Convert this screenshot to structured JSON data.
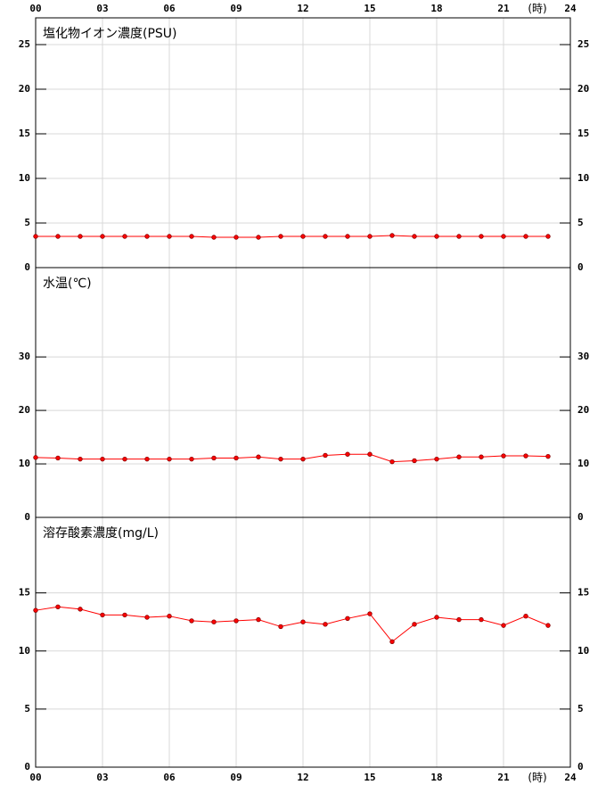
{
  "chart_data": [
    {
      "type": "line",
      "title": "塩化物イオン濃度(PSU)",
      "x_unit": "(時)",
      "x": [
        0,
        1,
        2,
        3,
        4,
        5,
        6,
        7,
        8,
        9,
        10,
        11,
        12,
        13,
        14,
        15,
        16,
        17,
        18,
        19,
        20,
        21,
        22,
        23
      ],
      "values": [
        3.5,
        3.5,
        3.5,
        3.5,
        3.5,
        3.5,
        3.5,
        3.5,
        3.4,
        3.4,
        3.4,
        3.5,
        3.5,
        3.5,
        3.5,
        3.5,
        3.6,
        3.5,
        3.5,
        3.5,
        3.5,
        3.5,
        3.5,
        3.5
      ],
      "color": "#ff0000",
      "xlim": [
        0,
        24
      ],
      "ylim": [
        0,
        28
      ],
      "xticks": [
        {
          "value": 0,
          "label": "00"
        },
        {
          "value": 3,
          "label": "03"
        },
        {
          "value": 6,
          "label": "06"
        },
        {
          "value": 9,
          "label": "09"
        },
        12,
        15,
        18,
        21,
        24
      ],
      "yticks": [
        0,
        5,
        10,
        15,
        20,
        25
      ],
      "grid": true
    },
    {
      "type": "line",
      "title": "水温(℃)",
      "x": [
        0,
        1,
        2,
        3,
        4,
        5,
        6,
        7,
        8,
        9,
        10,
        11,
        12,
        13,
        14,
        15,
        16,
        17,
        18,
        19,
        20,
        21,
        22,
        23
      ],
      "values": [
        11.2,
        11.1,
        10.9,
        10.9,
        10.9,
        10.9,
        10.9,
        10.9,
        11.1,
        11.1,
        11.3,
        10.9,
        10.9,
        11.6,
        11.8,
        11.8,
        10.4,
        10.6,
        10.9,
        11.3,
        11.3,
        11.5,
        11.5,
        11.4
      ],
      "color": "#ff0000",
      "xlim": [
        0,
        24
      ],
      "ylim": [
        0,
        46.7
      ],
      "xticks": [
        {
          "value": 0,
          "label": "00"
        },
        {
          "value": 3,
          "label": "03"
        },
        {
          "value": 6,
          "label": "06"
        },
        {
          "value": 9,
          "label": "09"
        },
        12,
        15,
        18,
        21,
        24
      ],
      "yticks": [
        0,
        10,
        20,
        30
      ],
      "grid": true
    },
    {
      "type": "line",
      "title": "溶存酸素濃度(mg/L)",
      "x_unit": "(時)",
      "x": [
        0,
        1,
        2,
        3,
        4,
        5,
        6,
        7,
        8,
        9,
        10,
        11,
        12,
        13,
        14,
        15,
        16,
        17,
        18,
        19,
        20,
        21,
        22,
        23
      ],
      "values": [
        13.5,
        13.8,
        13.6,
        13.1,
        13.1,
        12.9,
        13.0,
        12.6,
        12.5,
        12.6,
        12.7,
        12.1,
        12.5,
        12.3,
        12.8,
        13.2,
        10.8,
        12.3,
        12.9,
        12.7,
        12.7,
        12.2,
        13.0,
        12.2
      ],
      "color": "#ff0000",
      "xlim": [
        0,
        24
      ],
      "ylim": [
        0,
        21.5
      ],
      "xticks": [
        {
          "value": 0,
          "label": "00"
        },
        {
          "value": 3,
          "label": "03"
        },
        {
          "value": 6,
          "label": "06"
        },
        {
          "value": 9,
          "label": "09"
        },
        12,
        15,
        18,
        21,
        24
      ],
      "yticks": [
        0,
        5,
        10,
        15
      ],
      "grid": true
    }
  ]
}
